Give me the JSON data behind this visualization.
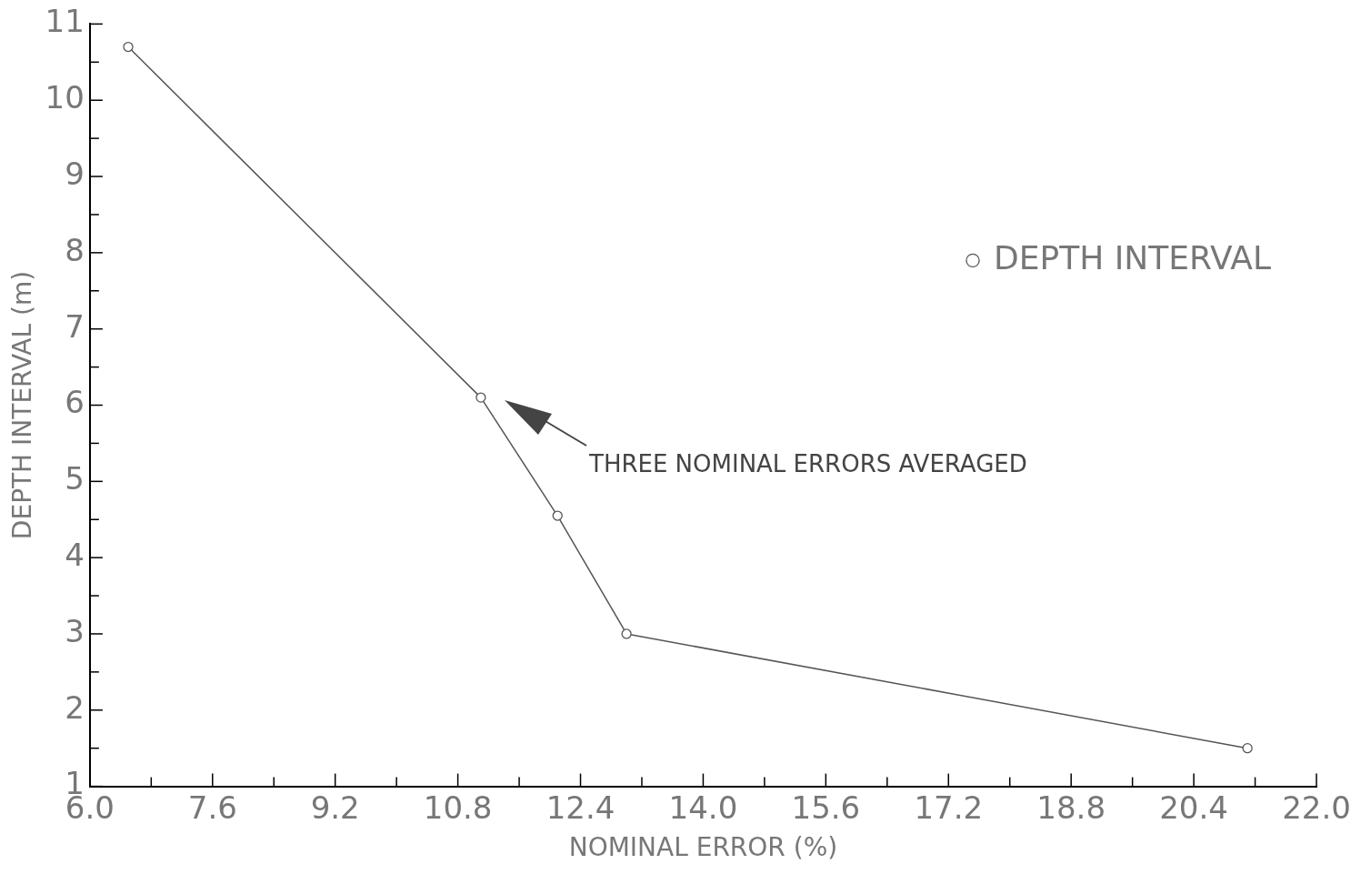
{
  "chart_data": {
    "type": "line",
    "xlabel": "NOMINAL ERROR (%)",
    "ylabel": "DEPTH INTERVAL (m)",
    "x": [
      6.5,
      11.1,
      12.1,
      13.0,
      21.1
    ],
    "series": [
      {
        "name": "DEPTH INTERVAL",
        "color": "#555555",
        "values": [
          10.7,
          6.1,
          4.55,
          3.0,
          1.5
        ]
      }
    ],
    "xlim": [
      6.0,
      22.0
    ],
    "xticks": [
      {
        "value": 6.0,
        "label": "6.0"
      },
      {
        "value": 6.8,
        "label": null
      },
      {
        "value": 7.6,
        "label": "7.6"
      },
      {
        "value": 8.4,
        "label": null
      },
      {
        "value": 9.2,
        "label": "9.2"
      },
      {
        "value": 10.0,
        "label": null
      },
      {
        "value": 10.8,
        "label": "10.8"
      },
      {
        "value": 11.6,
        "label": null
      },
      {
        "value": 12.4,
        "label": "12.4"
      },
      {
        "value": 13.2,
        "label": null
      },
      {
        "value": 14.0,
        "label": "14.0"
      },
      {
        "value": 14.8,
        "label": null
      },
      {
        "value": 15.6,
        "label": "15.6"
      },
      {
        "value": 16.4,
        "label": null
      },
      {
        "value": 17.2,
        "label": "17.2"
      },
      {
        "value": 18.0,
        "label": null
      },
      {
        "value": 18.8,
        "label": "18.8"
      },
      {
        "value": 19.6,
        "label": null
      },
      {
        "value": 20.4,
        "label": "20.4"
      },
      {
        "value": 21.2,
        "label": null
      },
      {
        "value": 22.0,
        "label": "22.0"
      }
    ],
    "ylim": [
      1,
      11
    ],
    "yticks": [
      1,
      {
        "value": 1.5,
        "label": null
      },
      2,
      {
        "value": 2.5,
        "label": null
      },
      3,
      {
        "value": 3.5,
        "label": null
      },
      4,
      {
        "value": 4.5,
        "label": null
      },
      5,
      {
        "value": 5.5,
        "label": null
      },
      6,
      {
        "value": 6.5,
        "label": null
      },
      7,
      {
        "value": 7.5,
        "label": null
      },
      8,
      {
        "value": 8.5,
        "label": null
      },
      9,
      {
        "value": 9.5,
        "label": null
      },
      10,
      {
        "value": 10.5,
        "label": null
      },
      11
    ],
    "annotations": [
      "THREE NOMINAL ERRORS AVERAGED"
    ],
    "legend": "top right",
    "marker": "circle",
    "line_style": "solid",
    "grid": false
  }
}
